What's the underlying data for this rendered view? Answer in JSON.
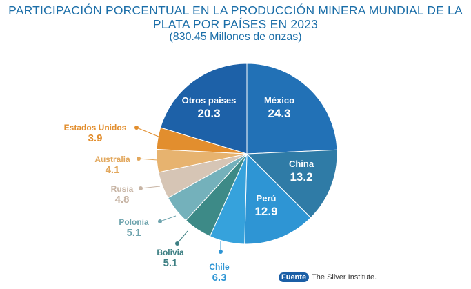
{
  "title_line1": "PARTICIPACIÓN PORCENTUAL EN LA PRODUCCIÓN MINERA MUNDIAL DE LA",
  "title_line2": "PLATA POR PAÍSES EN 2023",
  "subtitle": "(830.45 Millones de onzas)",
  "source": {
    "label": "Fuente",
    "text": "The Silver Institute."
  },
  "chart_data": {
    "type": "pie",
    "title": "PARTICIPACIÓN PORCENTUAL EN LA PRODUCCIÓN MINERA MUNDIAL DE LA PLATA POR PAÍSES EN 2023",
    "subtitle": "(830.45 Millones de onzas)",
    "start": "top, clockwise",
    "slices": [
      {
        "label": "México",
        "value": 24.3,
        "color": "#2271b6"
      },
      {
        "label": "China",
        "value": 13.2,
        "color": "#2f7ba6"
      },
      {
        "label": "Perú",
        "value": 12.9,
        "color": "#2e95d4"
      },
      {
        "label": "Chile",
        "value": 6.3,
        "color": "#36a2dc"
      },
      {
        "label": "Bolivia",
        "value": 5.1,
        "color": "#3d8a87"
      },
      {
        "label": "Polonia",
        "value": 5.1,
        "color": "#74b1bb"
      },
      {
        "label": "Rusia",
        "value": 4.8,
        "color": "#d6c5b5"
      },
      {
        "label": "Australia",
        "value": 4.1,
        "color": "#e7b36f"
      },
      {
        "label": "Estados Unidos",
        "value": 3.9,
        "color": "#e28e2e"
      },
      {
        "label": "Otros paises",
        "value": 20.3,
        "color": "#1d61a8"
      }
    ]
  }
}
